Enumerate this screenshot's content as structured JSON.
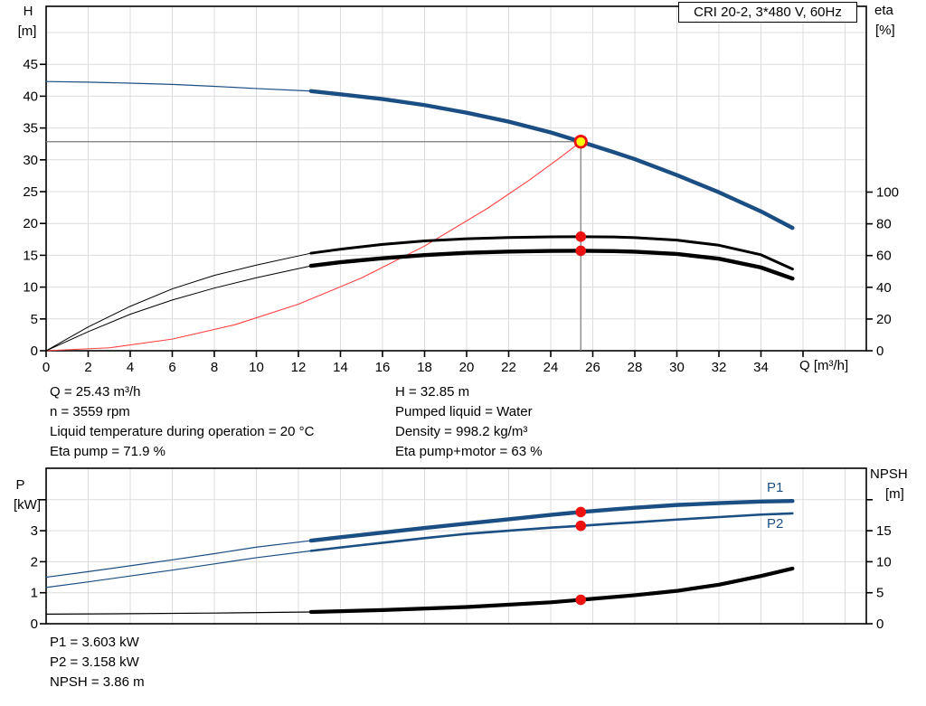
{
  "colors": {
    "curve_blue": "#1b4e82",
    "curve_black": "#000000",
    "system_red": "#ff4040",
    "marker_red": "#ee1111",
    "duty_yellow": "#ffff00",
    "grid_gray": "#dcdcdc",
    "ref_gray": "#7a7a7a"
  },
  "top_chart": {
    "title": "CRI 20-2, 3*480 V, 60Hz",
    "y_left_title_1": "H",
    "y_left_title_2": "[m]",
    "y_right_title_1": "eta",
    "y_right_title_2": "[%]",
    "x_title": "Q [m³/h]"
  },
  "bottom_chart": {
    "y_left_title_1": "P",
    "y_left_title_2": "[kW]",
    "y_right_title_1": "NPSH",
    "y_right_title_2": "[m]",
    "p1_label": "P1",
    "p2_label": "P2"
  },
  "results": {
    "top_left": [
      "Q = 25.43 m³/h",
      "n = 3559 rpm",
      "Liquid temperature during operation = 20 °C",
      "Eta pump = 71.9 %"
    ],
    "top_right": [
      "H = 32.85 m",
      "Pumped liquid = Water",
      "Density = 998.2 kg/m³",
      "Eta pump+motor = 63 %"
    ],
    "bottom": [
      "P1 = 3.603 kW",
      "P2 = 3.158 kW",
      "NPSH = 3.86 m"
    ]
  },
  "chart_data": [
    {
      "type": "line",
      "title": "CRI 20-2, 3*480 V, 60Hz",
      "xlabel": "Q [m³/h]",
      "ylabel_left": "H [m]",
      "ylabel_right": "eta [%]",
      "xlim": [
        0,
        39
      ],
      "ylim_left": [
        0,
        54
      ],
      "ylim_right_ticks_span": [
        0,
        100
      ],
      "grid": true,
      "axes": {
        "x": {
          "ticks": [
            0,
            2,
            4,
            6,
            8,
            10,
            12,
            14,
            16,
            18,
            20,
            22,
            24,
            26,
            28,
            30,
            32,
            34,
            36
          ],
          "labeled": [
            0,
            2,
            4,
            6,
            8,
            10,
            12,
            14,
            16,
            18,
            20,
            22,
            24,
            26,
            28,
            30,
            32,
            34
          ]
        },
        "left": {
          "axis": "H",
          "ticks": [
            0,
            5,
            10,
            15,
            20,
            25,
            30,
            35,
            40,
            45
          ],
          "grid": [
            5,
            10,
            15,
            20,
            25,
            30,
            35,
            40,
            45,
            50
          ]
        },
        "right": {
          "axis": "eta",
          "ticks": [
            0,
            20,
            40,
            60,
            80,
            100
          ],
          "labeled": [
            0,
            20,
            40,
            60,
            80,
            100
          ]
        }
      },
      "duty_point": {
        "q": 25.43,
        "axis": "H",
        "v": 32.85
      },
      "markers": [
        {
          "q": 25.43,
          "axis": "eta",
          "v": 71.9
        },
        {
          "q": 25.43,
          "axis": "eta",
          "v": 63
        }
      ],
      "series": [
        {
          "name": "system curve",
          "axis": "H",
          "color": "#ff4040",
          "thick_from": null,
          "points": [
            [
              0,
              0
            ],
            [
              3,
              0.46
            ],
            [
              6,
              1.83
            ],
            [
              9,
              4.11
            ],
            [
              12,
              7.31
            ],
            [
              15,
              11.43
            ],
            [
              18,
              16.45
            ],
            [
              21,
              22.39
            ],
            [
              23,
              26.86
            ],
            [
              24.5,
              30.48
            ],
            [
              25.43,
              32.85
            ]
          ]
        },
        {
          "name": "eta pump+motor",
          "axis": "eta",
          "color": "#000000",
          "thick_from": 12.6,
          "points": [
            [
              0,
              0
            ],
            [
              2,
              12
            ],
            [
              4,
              23
            ],
            [
              6,
              32
            ],
            [
              8,
              39.5
            ],
            [
              10,
              46
            ],
            [
              12.6,
              53.5
            ],
            [
              14,
              55.8
            ],
            [
              16,
              58.3
            ],
            [
              18,
              60.3
            ],
            [
              20,
              61.7
            ],
            [
              22,
              62.5
            ],
            [
              24,
              62.9
            ],
            [
              25.43,
              63
            ],
            [
              27,
              62.8
            ],
            [
              28,
              62.4
            ],
            [
              30,
              61
            ],
            [
              32,
              58
            ],
            [
              34,
              52.5
            ],
            [
              35.5,
              45.5
            ]
          ]
        },
        {
          "name": "eta pump",
          "axis": "eta",
          "color": "#000000",
          "thick_from": 12.6,
          "points": [
            [
              0,
              0
            ],
            [
              2,
              15
            ],
            [
              4,
              28
            ],
            [
              6,
              39
            ],
            [
              8,
              47.5
            ],
            [
              10,
              54
            ],
            [
              12.6,
              61.5
            ],
            [
              14,
              64
            ],
            [
              16,
              67
            ],
            [
              18,
              69.2
            ],
            [
              20,
              70.6
            ],
            [
              22,
              71.4
            ],
            [
              24,
              71.8
            ],
            [
              25.43,
              71.9
            ],
            [
              27,
              71.7
            ],
            [
              28,
              71.3
            ],
            [
              30,
              69.7
            ],
            [
              32,
              66.5
            ],
            [
              34,
              60.5
            ],
            [
              35.5,
              51.5
            ]
          ]
        },
        {
          "name": "pump curve H",
          "axis": "H",
          "color": "#1b4e82",
          "thick_from": 12.6,
          "points": [
            [
              0,
              42.3
            ],
            [
              2,
              42.2
            ],
            [
              4,
              42.05
            ],
            [
              6,
              41.85
            ],
            [
              8,
              41.55
            ],
            [
              10,
              41.2
            ],
            [
              12.6,
              40.8
            ],
            [
              14,
              40.3
            ],
            [
              16,
              39.55
            ],
            [
              18,
              38.6
            ],
            [
              20,
              37.4
            ],
            [
              22,
              36.0
            ],
            [
              24,
              34.3
            ],
            [
              25.43,
              32.85
            ],
            [
              27,
              31.2
            ],
            [
              28,
              30.1
            ],
            [
              30,
              27.6
            ],
            [
              32,
              24.9
            ],
            [
              34,
              21.9
            ],
            [
              35.5,
              19.3
            ]
          ]
        }
      ]
    },
    {
      "type": "line",
      "title": "",
      "xlabel": "",
      "ylabel_left": "P [kW]",
      "ylabel_right": "NPSH [m]",
      "xlim": [
        0,
        39
      ],
      "ylim_left": [
        0,
        5
      ],
      "ylim_right": [
        0,
        25
      ],
      "grid": true,
      "axes": {
        "x": {
          "ticks": [],
          "labeled": []
        },
        "left": {
          "axis": "P",
          "ticks": [
            0,
            1,
            2,
            3,
            4
          ],
          "labeled": [
            0,
            1,
            2,
            3
          ],
          "grid": [
            1,
            2,
            3,
            4
          ]
        },
        "right": {
          "axis": "NPSH",
          "ticks": [
            0,
            5,
            10,
            15,
            20
          ],
          "labeled": [
            0,
            5,
            10,
            15
          ]
        }
      },
      "markers": [
        {
          "q": 25.43,
          "axis": "P",
          "v": 3.603
        },
        {
          "q": 25.43,
          "axis": "P",
          "v": 3.158
        },
        {
          "q": 25.43,
          "axis": "NPSH",
          "v": 3.86
        }
      ],
      "series": [
        {
          "name": "NPSH",
          "axis": "NPSH",
          "color": "#000000",
          "thick_from": 12.6,
          "points": [
            [
              0,
              1.55
            ],
            [
              4,
              1.62
            ],
            [
              8,
              1.72
            ],
            [
              12.6,
              1.9
            ],
            [
              16,
              2.2
            ],
            [
              20,
              2.7
            ],
            [
              24,
              3.45
            ],
            [
              25.43,
              3.86
            ],
            [
              28,
              4.6
            ],
            [
              30,
              5.3
            ],
            [
              32,
              6.3
            ],
            [
              34,
              7.7
            ],
            [
              35.5,
              8.9
            ]
          ]
        },
        {
          "name": "P2",
          "axis": "P",
          "color": "#1b4e82",
          "thick_from": 12.6,
          "points": [
            [
              0,
              1.17
            ],
            [
              2,
              1.35
            ],
            [
              4,
              1.54
            ],
            [
              6,
              1.73
            ],
            [
              8,
              1.93
            ],
            [
              10,
              2.13
            ],
            [
              12.6,
              2.35
            ],
            [
              14,
              2.46
            ],
            [
              16,
              2.61
            ],
            [
              18,
              2.76
            ],
            [
              20,
              2.9
            ],
            [
              22,
              3.0
            ],
            [
              24,
              3.1
            ],
            [
              25.43,
              3.158
            ],
            [
              27,
              3.23
            ],
            [
              28,
              3.27
            ],
            [
              30,
              3.36
            ],
            [
              32,
              3.44
            ],
            [
              34,
              3.52
            ],
            [
              35.5,
              3.56
            ]
          ]
        },
        {
          "name": "P1",
          "axis": "P",
          "color": "#1b4e82",
          "thick_from": 12.6,
          "points": [
            [
              0,
              1.5
            ],
            [
              2,
              1.68
            ],
            [
              4,
              1.87
            ],
            [
              6,
              2.06
            ],
            [
              8,
              2.26
            ],
            [
              10,
              2.47
            ],
            [
              12.6,
              2.68
            ],
            [
              14,
              2.79
            ],
            [
              16,
              2.94
            ],
            [
              18,
              3.09
            ],
            [
              20,
              3.23
            ],
            [
              22,
              3.37
            ],
            [
              24,
              3.51
            ],
            [
              25.43,
              3.603
            ],
            [
              27,
              3.69
            ],
            [
              28,
              3.74
            ],
            [
              30,
              3.83
            ],
            [
              32,
              3.89
            ],
            [
              34,
              3.94
            ],
            [
              35.5,
              3.96
            ]
          ]
        }
      ]
    }
  ]
}
